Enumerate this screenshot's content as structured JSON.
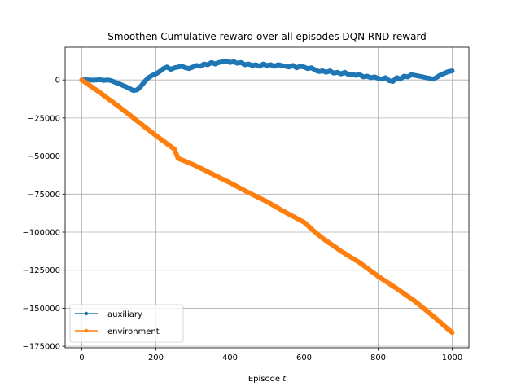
{
  "chart_data": {
    "type": "line",
    "title": "Smoothen Cumulative reward over all episodes DQN RND reward",
    "xlabel_prefix": "Episode ",
    "xlabel_var": "t",
    "ylabel": "",
    "xlim": [
      -45,
      1045
    ],
    "ylim": [
      -176000,
      21500
    ],
    "xticks": [
      0,
      200,
      400,
      600,
      800,
      1000
    ],
    "yticks": [
      0,
      -25000,
      -50000,
      -75000,
      -100000,
      -125000,
      -150000,
      -175000
    ],
    "grid": true,
    "legend_position": "lower-left",
    "series": [
      {
        "name": "auxiliary",
        "color": "#1f77b4",
        "x": [
          0,
          10,
          20,
          30,
          40,
          50,
          60,
          70,
          80,
          90,
          100,
          110,
          120,
          130,
          140,
          150,
          160,
          170,
          180,
          190,
          200,
          210,
          220,
          230,
          240,
          250,
          260,
          270,
          280,
          290,
          300,
          310,
          320,
          330,
          340,
          350,
          360,
          370,
          380,
          390,
          400,
          410,
          420,
          430,
          440,
          450,
          460,
          470,
          480,
          490,
          500,
          510,
          520,
          530,
          540,
          550,
          560,
          570,
          580,
          590,
          600,
          610,
          620,
          630,
          640,
          650,
          660,
          670,
          680,
          690,
          700,
          710,
          720,
          730,
          740,
          750,
          760,
          770,
          780,
          790,
          800,
          810,
          820,
          830,
          840,
          850,
          860,
          870,
          880,
          890,
          900,
          910,
          920,
          930,
          940,
          950,
          960,
          970,
          980,
          990,
          1000
        ],
        "values": [
          0,
          100,
          0,
          -200,
          0,
          100,
          -300,
          0,
          -500,
          -1500,
          -2500,
          -3500,
          -4500,
          -5800,
          -7000,
          -6500,
          -4000,
          -1000,
          1500,
          3000,
          4000,
          5500,
          7500,
          8500,
          7000,
          8000,
          8500,
          9000,
          8000,
          7500,
          8500,
          9500,
          9000,
          10500,
          10000,
          11500,
          10500,
          11500,
          12000,
          12500,
          11500,
          12000,
          11000,
          11500,
          10000,
          10500,
          9500,
          10000,
          9000,
          10500,
          9500,
          10000,
          9000,
          10000,
          9500,
          9000,
          8500,
          9500,
          8000,
          9000,
          8500,
          7500,
          8000,
          6500,
          5500,
          6000,
          5000,
          6000,
          4500,
          5000,
          4000,
          5000,
          3500,
          4000,
          3000,
          3500,
          2000,
          2500,
          1500,
          2000,
          1000,
          500,
          1500,
          -500,
          -1000,
          1500,
          500,
          2500,
          2000,
          3500,
          3000,
          2500,
          2000,
          1500,
          1000,
          500,
          2000,
          3500,
          4500,
          5500,
          6000
        ]
      },
      {
        "name": "environment",
        "color": "#ff7f0e",
        "x": [
          0,
          50,
          100,
          150,
          200,
          250,
          260,
          300,
          350,
          400,
          450,
          500,
          550,
          600,
          630,
          650,
          700,
          750,
          800,
          850,
          900,
          950,
          1000
        ],
        "values": [
          0,
          -8500,
          -17500,
          -27000,
          -36500,
          -45500,
          -51500,
          -55500,
          -61500,
          -67500,
          -74000,
          -80000,
          -87000,
          -93500,
          -100000,
          -104000,
          -112500,
          -120000,
          -129000,
          -137000,
          -145500,
          -155500,
          -166000
        ]
      }
    ]
  }
}
